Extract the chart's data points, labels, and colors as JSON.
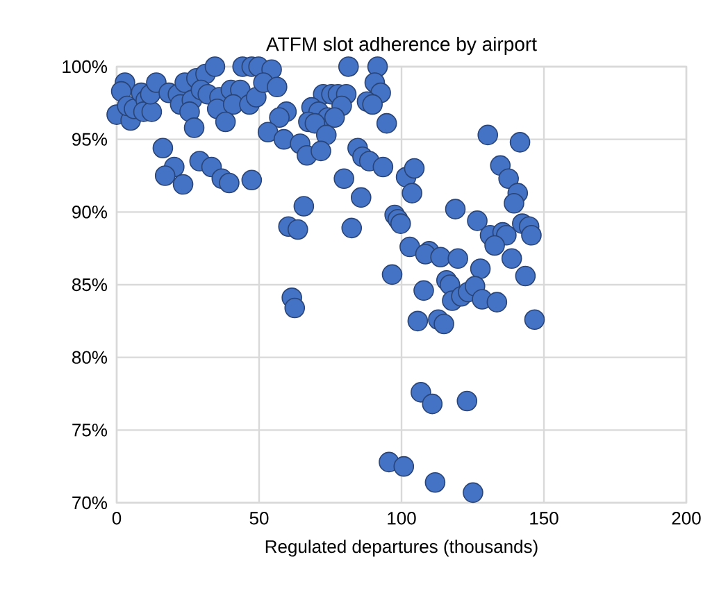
{
  "chart_data": {
    "type": "scatter",
    "title": "ATFM slot adherence by airport",
    "xlabel": "Regulated departures (thousands)",
    "xlim": [
      0,
      200
    ],
    "xticks": [
      0,
      50,
      100,
      150,
      200
    ],
    "ylim": [
      70,
      100
    ],
    "yticks": [
      {
        "value": 70,
        "label": "70%"
      },
      {
        "value": 75,
        "label": "75%"
      },
      {
        "value": 80,
        "label": "80%"
      },
      {
        "value": 85,
        "label": "85%"
      },
      {
        "value": 90,
        "label": "90%"
      },
      {
        "value": 95,
        "label": "95%"
      },
      {
        "value": 100,
        "label": "100%"
      }
    ],
    "grid": true,
    "marker": "circle",
    "color": "#4472c4",
    "x": [
      2.9,
      1.6,
      0,
      4.9,
      3.7,
      6.1,
      8.6,
      10.2,
      9.4,
      12.3,
      11.8,
      13.9,
      18.3,
      21.5,
      23.9,
      22.3,
      26.4,
      25.6,
      27.2,
      28,
      31.2,
      34.5,
      29.6,
      32,
      36.1,
      35.3,
      40.1,
      43.4,
      40.9,
      38.2,
      46.6,
      49,
      44.2,
      47.4,
      49.8,
      54.4,
      51.5,
      56.3,
      59.6,
      57.1,
      53.1,
      58.7,
      64.4,
      66.8,
      16.2,
      20.2,
      17,
      23.3,
      29.1,
      33.3,
      36.9,
      39.5,
      47.4,
      65.7,
      60.3,
      63.6,
      61.5,
      62.5,
      81.4,
      91.6,
      90.6,
      92.7,
      87.9,
      89.8,
      94.8,
      72.5,
      75.4,
      77.7,
      80.6,
      68.4,
      70.9,
      79,
      74.1,
      76.5,
      67.3,
      69.6,
      73.6,
      71.7,
      84.6,
      86.3,
      88.7,
      93.5,
      79.8,
      85.8,
      82.5,
      101.6,
      104.5,
      103.7,
      97.6,
      98.7,
      99.7,
      118.9,
      102.9,
      109.7,
      108.4,
      113.7,
      119.8,
      96.7,
      107.8,
      115.8,
      117,
      117.8,
      121,
      123.4,
      105.7,
      112.9,
      114.9,
      106.8,
      110.8,
      123,
      95.6,
      100.8,
      111.8,
      125.1,
      130.3,
      141.6,
      134.7,
      137.6,
      140.8,
      139.5,
      126.6,
      131.1,
      135.5,
      136.8,
      132.7,
      142.4,
      144.8,
      145.6,
      138.7,
      127.7,
      143.5,
      125.8,
      128.3,
      133.5,
      146.7
    ],
    "values": [
      98.9,
      98.3,
      96.7,
      96.3,
      97.3,
      97.1,
      98.2,
      97.7,
      96.9,
      96.9,
      98.1,
      98.9,
      98.2,
      98.1,
      98.9,
      97.4,
      97.7,
      96.9,
      95.8,
      99.2,
      99.5,
      100,
      98.4,
      98.1,
      97.9,
      97.1,
      98.4,
      98.4,
      97.4,
      96.2,
      97.4,
      97.9,
      100,
      100,
      100,
      99.8,
      98.9,
      98.6,
      96.9,
      96.5,
      95.5,
      95,
      94.7,
      93.9,
      94.4,
      93.1,
      92.5,
      91.9,
      93.5,
      93.1,
      92.3,
      92,
      92.2,
      90.4,
      89,
      88.8,
      84.1,
      83.4,
      100,
      100,
      98.9,
      98.2,
      97.6,
      97.4,
      96.1,
      98.1,
      98.1,
      98.1,
      98.1,
      97.2,
      96.9,
      97.3,
      96.5,
      96.5,
      96.2,
      96.1,
      95.3,
      94.2,
      94.4,
      93.8,
      93.5,
      93.1,
      92.3,
      91,
      88.9,
      92.4,
      93,
      91.3,
      89.8,
      89.5,
      89.2,
      90.2,
      87.6,
      87.3,
      87.1,
      86.9,
      86.8,
      85.7,
      84.6,
      85.3,
      85,
      83.9,
      84.2,
      84.5,
      82.5,
      82.6,
      82.3,
      77.6,
      76.8,
      77,
      72.8,
      72.5,
      71.4,
      70.7,
      95.3,
      94.8,
      93.2,
      92.3,
      91.3,
      90.6,
      89.4,
      88.4,
      88.6,
      88.4,
      87.7,
      89.2,
      89,
      88.4,
      86.8,
      86.1,
      85.6,
      84.9,
      84,
      83.8,
      82.6
    ]
  }
}
